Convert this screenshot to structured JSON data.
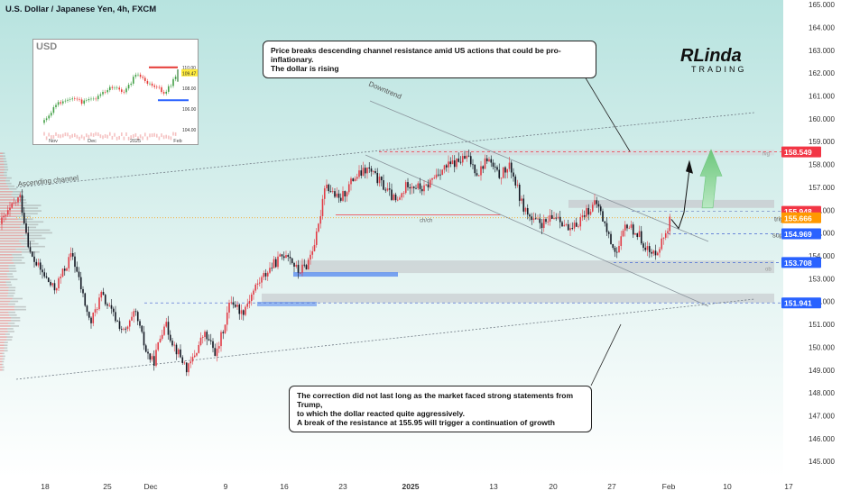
{
  "header": {
    "symbol_title": "U.S. Dollar / Japanese Yen, 4h, FXCM"
  },
  "colors": {
    "up": "#e23b45",
    "down": "#131722",
    "accent_blue": "#2962ff",
    "green_arrow": "#7ccf8c",
    "bg_gradient_top": "#bde6e4"
  },
  "annotations": {
    "top_note": "Price breaks descending channel resistance amid US actions that could be pro-inflationary.\nThe dollar is rising",
    "bottom_note": "The correction did not last long as the market faced strong statements from Trump,\nto which the dollar reacted quite aggressively.\nA break of the resistance at 155.95 will trigger a continuation of growth",
    "downtrend_label": "Downtrend",
    "ascending_label": "Ascending channel",
    "ch_label": "ch/ch",
    "trigger_label": "trigger",
    "support_label": "support",
    "poi_label": "poi",
    "fvg_label": "fvg",
    "ob_label": "ob"
  },
  "logo": {
    "line1": "RLinda",
    "line2": "TRADING"
  },
  "inset": {
    "title": "USD",
    "price_labels": [
      "110.00",
      "109.47",
      "108.00",
      "106.00",
      "104.00"
    ],
    "x_labels": [
      "Nov",
      "Dec",
      "2025",
      "Feb"
    ]
  },
  "chart_data": {
    "type": "candlestick",
    "title": "U.S. Dollar / Japanese Yen, 4h, FXCM",
    "ylim": [
      144.3,
      165.2
    ],
    "y_ticks": [
      145,
      146,
      147,
      148,
      149,
      150,
      151,
      152,
      153,
      154,
      155,
      156,
      157,
      158,
      159,
      160,
      161,
      162,
      163,
      164,
      165
    ],
    "x_labels": [
      "18",
      "25",
      "Dec",
      "9",
      "16",
      "23",
      "2025",
      "13",
      "20",
      "27",
      "Feb",
      "10",
      "17"
    ],
    "price_labels": [
      {
        "value": 158.549,
        "text": "158.549",
        "color": "#f23645"
      },
      {
        "value": 155.948,
        "text": "155.948",
        "color": "#f23645"
      },
      {
        "value": 155.666,
        "text": "155.666",
        "color": "#ff9800"
      },
      {
        "value": 154.969,
        "text": "154.969",
        "color": "#2962ff"
      },
      {
        "value": 153.708,
        "text": "153.708",
        "color": "#2962ff"
      },
      {
        "value": 151.941,
        "text": "151.941",
        "color": "#2962ff"
      }
    ],
    "levels": {
      "resistance_top": 158.549,
      "trigger": 155.948,
      "support": 154.969,
      "lower_support": 153.708,
      "poi": 151.941
    },
    "path_key_points": [
      [
        0,
        155.4
      ],
      [
        22,
        156.6
      ],
      [
        34,
        154.0
      ],
      [
        60,
        152.5
      ],
      [
        80,
        154.1
      ],
      [
        100,
        151.0
      ],
      [
        112,
        152.3
      ],
      [
        138,
        150.6
      ],
      [
        150,
        151.5
      ],
      [
        162,
        149.8
      ],
      [
        170,
        149.3
      ],
      [
        182,
        151.1
      ],
      [
        194,
        150.0
      ],
      [
        208,
        149.0
      ],
      [
        226,
        150.6
      ],
      [
        240,
        149.7
      ],
      [
        256,
        152.1
      ],
      [
        268,
        151.5
      ],
      [
        284,
        152.7
      ],
      [
        300,
        153.5
      ],
      [
        318,
        154.2
      ],
      [
        330,
        153.3
      ],
      [
        340,
        153.6
      ],
      [
        352,
        155.0
      ],
      [
        360,
        157.2
      ],
      [
        376,
        156.4
      ],
      [
        392,
        157.4
      ],
      [
        408,
        157.8
      ],
      [
        424,
        157.1
      ],
      [
        440,
        156.3
      ],
      [
        452,
        157.2
      ],
      [
        470,
        156.9
      ],
      [
        486,
        157.7
      ],
      [
        500,
        158.0
      ],
      [
        518,
        158.3
      ],
      [
        530,
        157.6
      ],
      [
        540,
        158.3
      ],
      [
        552,
        157.5
      ],
      [
        566,
        157.9
      ],
      [
        578,
        156.3
      ],
      [
        590,
        155.5
      ],
      [
        604,
        155.4
      ],
      [
        618,
        155.8
      ],
      [
        632,
        155.0
      ],
      [
        648,
        155.9
      ],
      [
        662,
        156.3
      ],
      [
        676,
        154.7
      ],
      [
        684,
        154.1
      ],
      [
        694,
        155.4
      ],
      [
        708,
        154.9
      ],
      [
        722,
        154.0
      ],
      [
        732,
        154.5
      ],
      [
        744,
        155.7
      ]
    ]
  }
}
